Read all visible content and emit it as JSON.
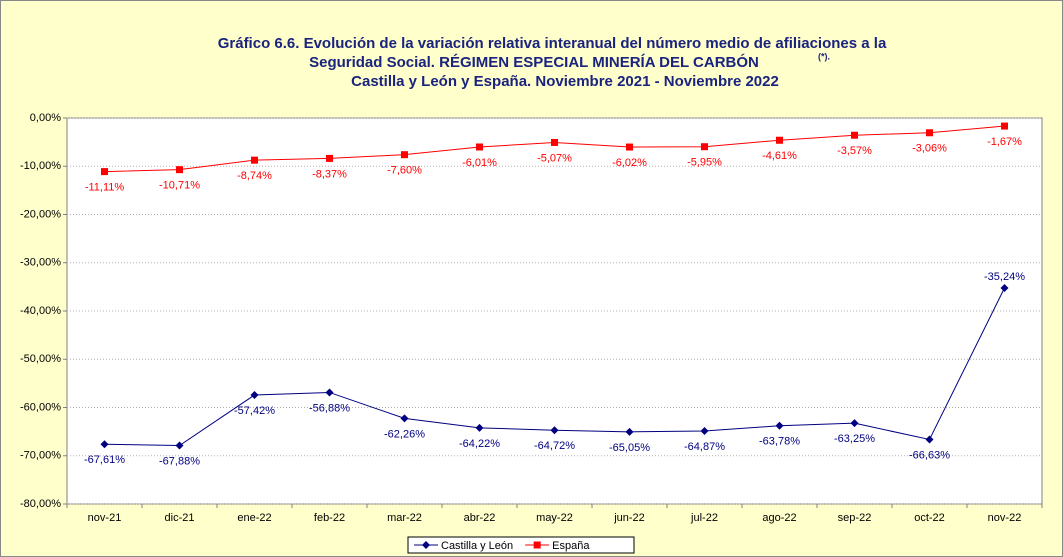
{
  "chart_data": {
    "type": "line",
    "title": [
      "Gráfico 6.6. Evolución de la variación relativa interanual del número medio de  afiliaciones a la",
      "Seguridad Social. RÉGIMEN ESPECIAL MINERÍA DEL CARBÓN",
      "Castilla y León y España. Noviembre 2021 - Noviembre 2022"
    ],
    "title_note": "(*).",
    "categories": [
      "nov-21",
      "dic-21",
      "ene-22",
      "feb-22",
      "mar-22",
      "abr-22",
      "may-22",
      "jun-22",
      "jul-22",
      "ago-22",
      "sep-22",
      "oct-22",
      "nov-22"
    ],
    "series": [
      {
        "name": "Castilla y León",
        "color": "#000080",
        "marker": "diamond",
        "values": [
          -67.61,
          -67.88,
          -57.42,
          -56.88,
          -62.26,
          -64.22,
          -64.72,
          -65.05,
          -64.87,
          -63.78,
          -63.25,
          -66.63,
          -35.24
        ],
        "value_labels": [
          "-67,61%",
          "-67,88%",
          "-57,42%",
          "-56,88%",
          "-62,26%",
          "-64,22%",
          "-64,72%",
          "-65,05%",
          "-64,87%",
          "-63,78%",
          "-63,25%",
          "-66,63%",
          "-35,24%"
        ]
      },
      {
        "name": "España",
        "color": "#ff0000",
        "marker": "square",
        "values": [
          -11.11,
          -10.71,
          -8.74,
          -8.37,
          -7.6,
          -6.01,
          -5.07,
          -6.02,
          -5.95,
          -4.61,
          -3.57,
          -3.06,
          -1.67
        ],
        "value_labels": [
          "-11,11%",
          "-10,71%",
          "-8,74%",
          "-8,37%",
          "-7,60%",
          "-6,01%",
          "-5,07%",
          "-6,02%",
          "-5,95%",
          "-4,61%",
          "-3,57%",
          "-3,06%",
          "-1,67%"
        ]
      }
    ],
    "ylim": [
      -80,
      0
    ],
    "yticks": [
      {
        "value": 0,
        "label": "0,00%"
      },
      {
        "value": -10,
        "label": "-10,00%"
      },
      {
        "value": -20,
        "label": "-20,00%"
      },
      {
        "value": -30,
        "label": "-30,00%"
      },
      {
        "value": -40,
        "label": "-40,00%"
      },
      {
        "value": -50,
        "label": "-50,00%"
      },
      {
        "value": -60,
        "label": "-60,00%"
      },
      {
        "value": -70,
        "label": "-70,00%"
      },
      {
        "value": -80,
        "label": "-80,00%"
      }
    ],
    "grid": true,
    "legend": "bottom"
  }
}
